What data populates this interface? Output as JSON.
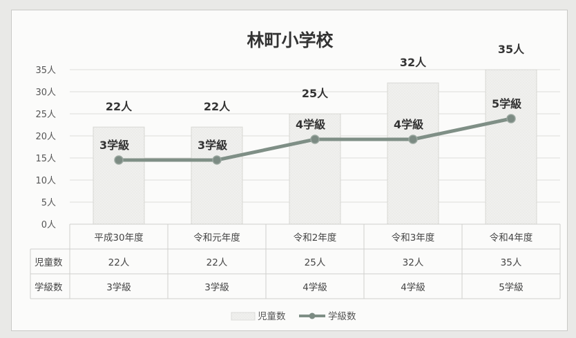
{
  "chart_data": {
    "type": "bar",
    "title": "林町小学校",
    "categories": [
      "平成30年度",
      "令和元年度",
      "令和2年度",
      "令和3年度",
      "令和4年度"
    ],
    "ylim": [
      0,
      35
    ],
    "yticks": [
      "0人",
      "5人",
      "10人",
      "15人",
      "20人",
      "25人",
      "30人",
      "35人"
    ],
    "grid": true,
    "legend_position": "bottom",
    "series": [
      {
        "name": "児童数",
        "type": "bar",
        "values": [
          22,
          22,
          25,
          32,
          35
        ],
        "labels": [
          "22人",
          "22人",
          "25人",
          "32人",
          "35人"
        ],
        "color": "#efefed"
      },
      {
        "name": "学級数",
        "type": "line",
        "values": [
          3,
          3,
          4,
          4,
          5
        ],
        "labels": [
          "3学級",
          "3学級",
          "4学級",
          "4学級",
          "5学級"
        ],
        "color": "#7f8f86"
      }
    ]
  }
}
